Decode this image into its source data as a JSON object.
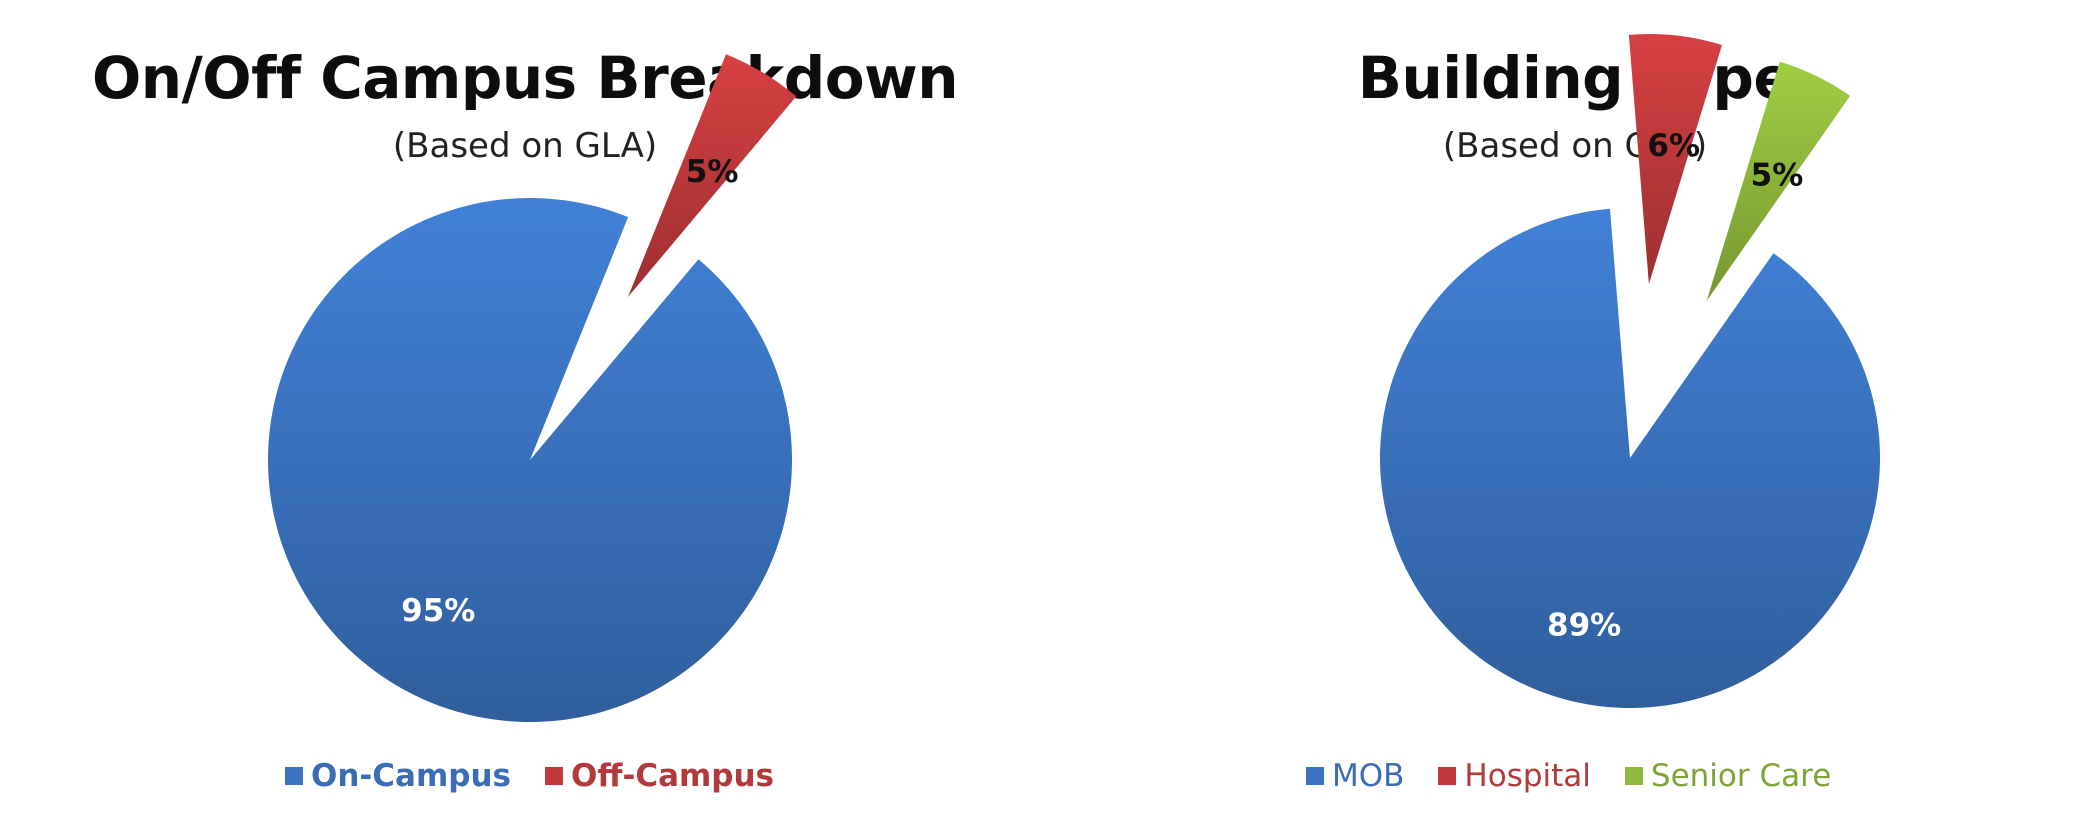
{
  "chart_data": [
    {
      "type": "pie",
      "title": "On/Off Campus Breakdown",
      "subtitle": "(Based on GLA)",
      "slices": [
        {
          "name": "On-Campus",
          "value": 95,
          "label": "95%",
          "color": "#3a73c0",
          "exploded": false
        },
        {
          "name": "Off-Campus",
          "value": 5,
          "label": "5%",
          "color": "#c0393b",
          "exploded": true
        }
      ],
      "legend": {
        "placement": "bottom"
      }
    },
    {
      "type": "pie",
      "title": "Building Type",
      "subtitle": "(Based on GLA)",
      "slices": [
        {
          "name": "MOB",
          "value": 89,
          "label": "89%",
          "color": "#3a73c0",
          "exploded": false
        },
        {
          "name": "Hospital",
          "value": 6,
          "label": "6%",
          "color": "#c0393b",
          "exploded": true
        },
        {
          "name": "Senior Care",
          "value": 5,
          "label": "5%",
          "color": "#8fb83c",
          "exploded": true
        }
      ],
      "legend": {
        "placement": "bottom"
      }
    }
  ]
}
